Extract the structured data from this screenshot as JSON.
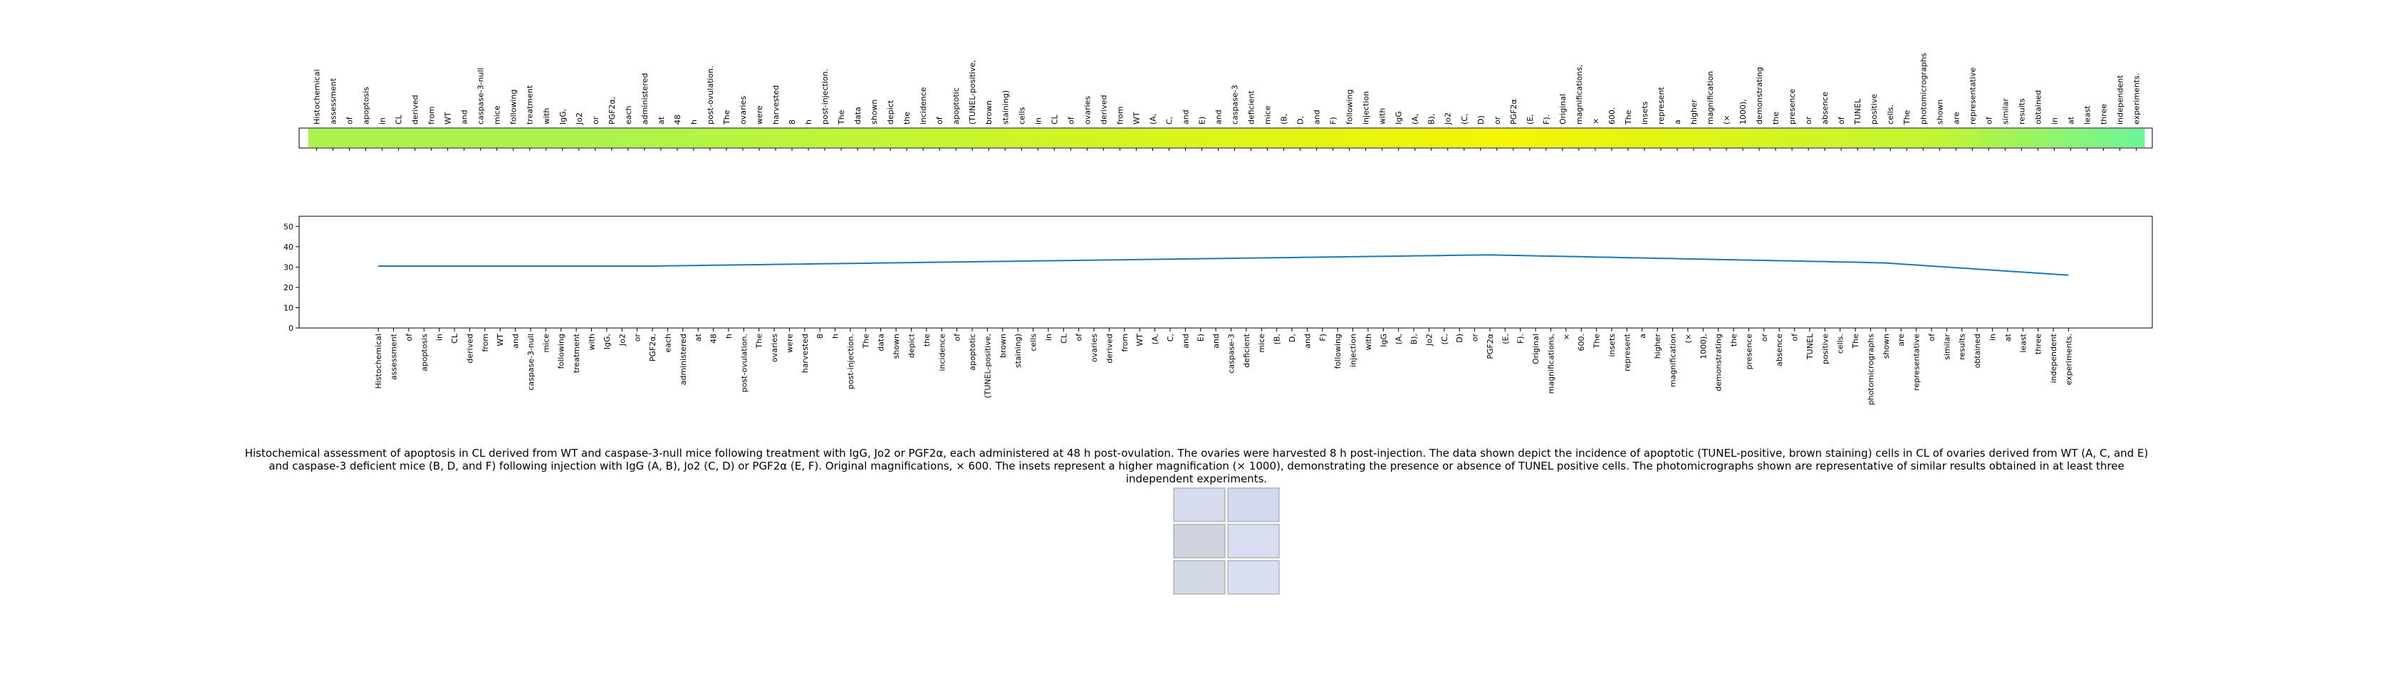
{
  "chart_data": [
    {
      "type": "heatmap",
      "categories": [
        "Histochemical",
        "assessment",
        "of",
        "apoptosis",
        "in",
        "CL",
        "derived",
        "from",
        "WT",
        "and",
        "caspase-3-null",
        "mice",
        "following",
        "treatment",
        "with",
        "IgG,",
        "Jo2",
        "or",
        "PGF2α,",
        "each",
        "administered",
        "at",
        "48",
        "h",
        "post-ovulation.",
        "The",
        "ovaries",
        "were",
        "harvested",
        "8",
        "h",
        "post-injection.",
        "The",
        "data",
        "shown",
        "depict",
        "the",
        "incidence",
        "of",
        "apoptotic",
        "(TUNEL-positive,",
        "brown",
        "staining)",
        "cells",
        "in",
        "CL",
        "of",
        "ovaries",
        "derived",
        "from",
        "WT",
        "(A,",
        "C,",
        "and",
        "E)",
        "and",
        "caspase-3",
        "deficient",
        "mice",
        "(B,",
        "D,",
        "and",
        "F)",
        "following",
        "injection",
        "with",
        "IgG",
        "(A,",
        "B),",
        "Jo2",
        "(C,",
        "D)",
        "or",
        "PGF2α",
        "(E,",
        "F).",
        "Original",
        "magnifications,",
        "×",
        "600.",
        "The",
        "insets",
        "represent",
        "a",
        "higher",
        "magnification",
        "(×",
        "1000),",
        "demonstrating",
        "the",
        "presence",
        "or",
        "absence",
        "of",
        "TUNEL",
        "positive",
        "cells.",
        "The",
        "photomicrographs",
        "shown",
        "are",
        "representative",
        "of",
        "similar",
        "results",
        "obtained",
        "in",
        "at",
        "least",
        "three",
        "independent",
        "experiments."
      ],
      "values": [
        30.5,
        30.5,
        30.5,
        30.5,
        30.5,
        30.5,
        30.5,
        30.5,
        30.5,
        30.5,
        30.5,
        30.5,
        30.5,
        30.5,
        30.5,
        30.5,
        30.5,
        30.5,
        30.5,
        30.6,
        30.7,
        30.8,
        30.9,
        31.0,
        31.1,
        31.2,
        31.3,
        31.4,
        31.5,
        31.6,
        31.7,
        31.8,
        31.9,
        32.0,
        32.1,
        32.2,
        32.3,
        32.4,
        32.5,
        32.6,
        32.7,
        32.8,
        32.9,
        33.0,
        33.1,
        33.2,
        33.3,
        33.4,
        33.5,
        33.6,
        33.7,
        33.8,
        33.9,
        34.0,
        34.1,
        34.2,
        34.3,
        34.4,
        34.5,
        34.6,
        34.7,
        34.8,
        34.9,
        35.0,
        35.1,
        35.2,
        35.3,
        35.4,
        35.5,
        35.6,
        35.7,
        35.8,
        35.9,
        36.0,
        35.8,
        35.7,
        35.5,
        35.4,
        35.2,
        35.1,
        34.9,
        34.8,
        34.6,
        34.5,
        34.3,
        34.2,
        34.0,
        33.9,
        33.7,
        33.6,
        33.4,
        33.3,
        33.1,
        33.0,
        32.8,
        32.7,
        32.5,
        32.4,
        32.2,
        32.0,
        31.5,
        31.0,
        30.5,
        30.0,
        29.5,
        29.0,
        28.5,
        28.0,
        27.5,
        27.0,
        26.5,
        26.0
      ],
      "vlim": [
        26,
        36
      ],
      "colormap": [
        "#6ef596",
        "#b2f542",
        "#f5f500"
      ]
    },
    {
      "type": "line",
      "categories": [
        "Histochemical",
        "assessment",
        "of",
        "apoptosis",
        "in",
        "CL",
        "derived",
        "from",
        "WT",
        "and",
        "caspase-3-null",
        "mice",
        "following",
        "treatment",
        "with",
        "IgG,",
        "Jo2",
        "or",
        "PGF2α,",
        "each",
        "administered",
        "at",
        "48",
        "h",
        "post-ovulation.",
        "The",
        "ovaries",
        "were",
        "harvested",
        "8",
        "h",
        "post-injection.",
        "The",
        "data",
        "shown",
        "depict",
        "the",
        "incidence",
        "of",
        "apoptotic",
        "(TUNEL-positive,",
        "brown",
        "staining)",
        "cells",
        "in",
        "CL",
        "of",
        "ovaries",
        "derived",
        "from",
        "WT",
        "(A,",
        "C,",
        "and",
        "E)",
        "and",
        "caspase-3",
        "deficient",
        "mice",
        "(B,",
        "D,",
        "and",
        "F)",
        "following",
        "injection",
        "with",
        "IgG",
        "(A,",
        "B),",
        "Jo2",
        "(C,",
        "D)",
        "or",
        "PGF2α",
        "(E,",
        "F).",
        "Original",
        "magnifications,",
        "×",
        "600.",
        "The",
        "insets",
        "represent",
        "a",
        "higher",
        "magnification",
        "(×",
        "1000),",
        "demonstrating",
        "the",
        "presence",
        "or",
        "absence",
        "of",
        "TUNEL",
        "positive",
        "cells.",
        "The",
        "photomicrographs",
        "shown",
        "are",
        "representative",
        "of",
        "similar",
        "results",
        "obtained",
        "in",
        "at",
        "least",
        "three",
        "independent",
        "experiments."
      ],
      "values": [
        30.5,
        30.5,
        30.5,
        30.5,
        30.5,
        30.5,
        30.5,
        30.5,
        30.5,
        30.5,
        30.5,
        30.5,
        30.5,
        30.5,
        30.5,
        30.5,
        30.5,
        30.5,
        30.5,
        30.6,
        30.7,
        30.8,
        30.9,
        31.0,
        31.1,
        31.2,
        31.3,
        31.4,
        31.5,
        31.6,
        31.7,
        31.8,
        31.9,
        32.0,
        32.1,
        32.2,
        32.3,
        32.4,
        32.5,
        32.6,
        32.7,
        32.8,
        32.9,
        33.0,
        33.1,
        33.2,
        33.3,
        33.4,
        33.5,
        33.6,
        33.7,
        33.8,
        33.9,
        34.0,
        34.1,
        34.2,
        34.3,
        34.4,
        34.5,
        34.6,
        34.7,
        34.8,
        34.9,
        35.0,
        35.1,
        35.2,
        35.3,
        35.4,
        35.5,
        35.6,
        35.7,
        35.8,
        35.9,
        36.0,
        35.8,
        35.7,
        35.5,
        35.4,
        35.2,
        35.1,
        34.9,
        34.8,
        34.6,
        34.5,
        34.3,
        34.2,
        34.0,
        33.9,
        33.7,
        33.6,
        33.4,
        33.3,
        33.1,
        33.0,
        32.8,
        32.7,
        32.5,
        32.4,
        32.2,
        32.0,
        31.5,
        31.0,
        30.5,
        30.0,
        29.5,
        29.0,
        28.5,
        28.0,
        27.5,
        27.0,
        26.5,
        26.0
      ],
      "color": "#1f77b4",
      "xlim": [
        -5.2,
        116.5
      ],
      "ylim": [
        0,
        55
      ],
      "yticks": [
        0,
        10,
        20,
        30,
        40,
        50
      ]
    }
  ],
  "caption": "Histochemical assessment of apoptosis in CL derived from WT and caspase-3-null mice following treatment with IgG, Jo2 or PGF2α, each administered at 48 h post-ovulation. The ovaries were harvested 8 h post-injection. The data shown depict the incidence of apoptotic (TUNEL-positive, brown staining) cells in CL of ovaries derived from WT (A, C, and E) and caspase-3 deficient mice (B, D, and F) following injection with IgG (A, B), Jo2 (C, D) or PGF2α (E, F). Original magnifications, × 600. The insets represent a higher magnification (× 1000), demonstrating the presence or absence of TUNEL positive cells. The photomicrographs shown are representative of similar results obtained in at least three independent experiments."
}
